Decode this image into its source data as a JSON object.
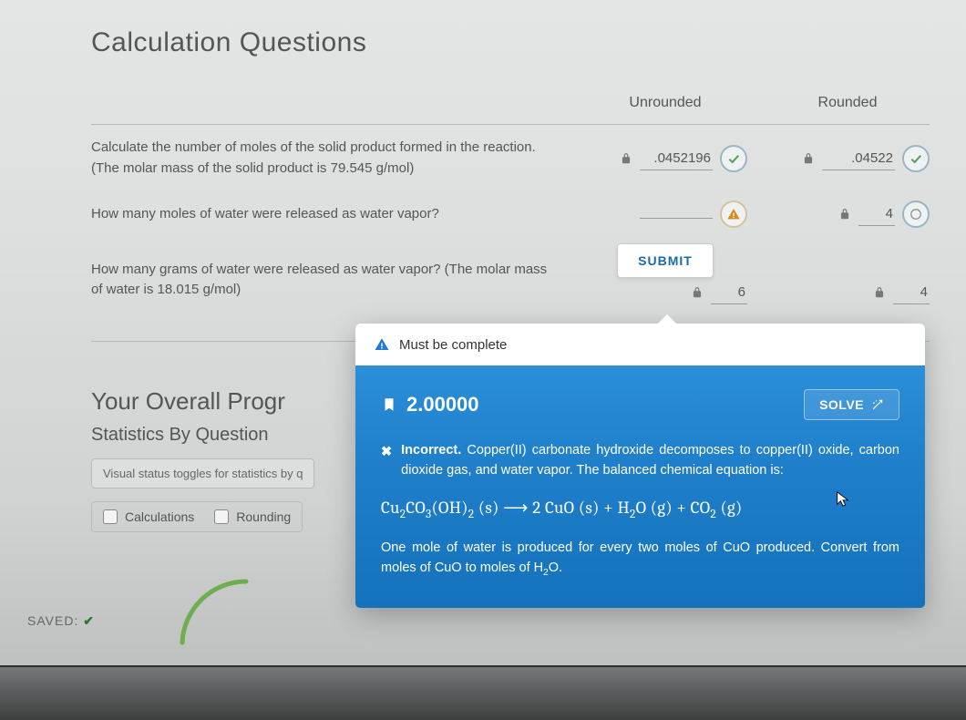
{
  "page_title": "Calculation Questions",
  "columns": {
    "unrounded": "Unrounded",
    "rounded": "Rounded"
  },
  "questions": [
    {
      "text": "Calculate the number of moles of the solid product formed in the reaction. (The molar mass of the solid product is 79.545 g/mol)",
      "unrounded": {
        "value": ".0452196",
        "status": "correct"
      },
      "rounded": {
        "value": ".04522",
        "status": "correct"
      }
    },
    {
      "text": "How many moles of water were released as water vapor?",
      "unrounded": {
        "value": "",
        "status": "warning"
      },
      "rounded": {
        "value": "4",
        "status": "pending"
      }
    },
    {
      "text": "How many grams of water were released as water vapor? (The molar mass of water is 18.015 g/mol)",
      "unrounded": {
        "value": "6",
        "status": "none"
      },
      "rounded": {
        "value": "4",
        "status": "none"
      }
    }
  ],
  "submit_label": "SUBMIT",
  "progress": {
    "title": "Your Overall Progr",
    "subtitle": "Statistics By Question",
    "toggle_hint": "Visual status toggles for statistics by q",
    "checks": [
      "Calculations",
      "Rounding"
    ]
  },
  "saved_label": "SAVED:",
  "popover": {
    "header": "Must be complete",
    "points": "2.00000",
    "solve_label": "SOLVE",
    "incorrect_prefix": "Incorrect.",
    "feedback_1": "Copper(II) carbonate hydroxide decomposes to copper(II) oxide, carbon dioxide gas, and water vapor. The balanced chemical equation is:",
    "equation_html": "Cu<span class='sub'>2</span>CO<span class='sub'>3</span>(OH)<span class='sub'>2</span> (s) ⟶ 2 CuO (s) + H<span class='sub'>2</span>O (g) + CO<span class='sub'>2</span> (g)",
    "feedback_2": "One mole of water is produced for every two moles of CuO produced. Convert from moles of CuO to moles of H<span class='sub'>2</span>O."
  },
  "colors": {
    "accent_blue": "#1f7fca",
    "correct": "#5a9e5a",
    "warning": "#d98b1a"
  }
}
